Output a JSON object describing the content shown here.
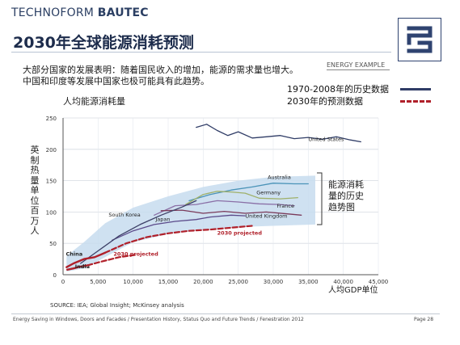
{
  "brand": {
    "part1": "TECHNOFORM ",
    "part2": "BAUTEC"
  },
  "title": "2030年全球能源消耗预测",
  "description": {
    "line1": "大部分国家的发展表明：随着国民收入的增加，能源的需求量也增大。",
    "line2": "中国和印度等发展中国家也极可能具有此趋势。"
  },
  "tag": "ENERGY EXAMPLE",
  "legend": [
    {
      "label": "1970-2008年的历史数据",
      "kind": "history",
      "color": "#2f3c66"
    },
    {
      "label": "2030年的预测数据",
      "kind": "projection",
      "color": "#b0202a"
    }
  ],
  "chart_subtitle": "人均能源消耗量",
  "side_label": "能源消耗量的历史趋势图",
  "source": "SOURCE: IEA; Global Insight; McKinsey analysis",
  "footer": "Energy Saving in Windows, Doors and Facades  / Presentation History, Status Quo and Future Trends / Fenestration 2012",
  "page_label": "Page 28",
  "chart_data": {
    "type": "line",
    "ylabel": "英制热量单位百万人",
    "xlabel": "人均GDP单位",
    "xlim": [
      0,
      45000
    ],
    "ylim": [
      0,
      250
    ],
    "x_ticks": [
      0,
      5000,
      10000,
      15000,
      20000,
      25000,
      30000,
      35000,
      40000,
      45000
    ],
    "x_tick_labels": [
      "0",
      "5,000",
      "10,000",
      "15,000",
      "20,000",
      "25,000",
      "30,000",
      "35,000",
      "40,000",
      "45,000"
    ],
    "y_ticks": [
      0,
      50,
      100,
      150,
      200,
      250
    ],
    "grid": true,
    "colors": {
      "band": "#c7dcef",
      "history": "#2f3c66",
      "projection": "#b0202a"
    },
    "band": {
      "upper": [
        [
          500,
          30
        ],
        [
          3000,
          52
        ],
        [
          6000,
          82
        ],
        [
          10000,
          107
        ],
        [
          15000,
          125
        ],
        [
          20000,
          140
        ],
        [
          25000,
          150
        ],
        [
          30000,
          156
        ],
        [
          36000,
          158
        ]
      ],
      "lower": [
        [
          500,
          5
        ],
        [
          3000,
          10
        ],
        [
          6000,
          28
        ],
        [
          10000,
          52
        ],
        [
          15000,
          65
        ],
        [
          20000,
          72
        ],
        [
          25000,
          76
        ],
        [
          30000,
          78
        ],
        [
          36000,
          80
        ]
      ]
    },
    "series": [
      {
        "name": "United States",
        "label": "United States",
        "label_at": [
          35000,
          213
        ],
        "color": "#2f3c66",
        "dashed": false,
        "points": [
          [
            19000,
            235
          ],
          [
            20500,
            240
          ],
          [
            22000,
            230
          ],
          [
            23500,
            222
          ],
          [
            25000,
            228
          ],
          [
            27000,
            218
          ],
          [
            29000,
            220
          ],
          [
            31000,
            222
          ],
          [
            33000,
            217
          ],
          [
            35000,
            219
          ],
          [
            37000,
            216
          ],
          [
            39000,
            220
          ],
          [
            41000,
            215
          ],
          [
            42500,
            212
          ]
        ]
      },
      {
        "name": "Australia",
        "label": "Australia",
        "label_at": [
          29200,
          153
        ],
        "color": "#4a93b8",
        "dashed": false,
        "points": [
          [
            18000,
            118
          ],
          [
            21000,
            128
          ],
          [
            24000,
            135
          ],
          [
            27000,
            140
          ],
          [
            30000,
            146
          ],
          [
            33000,
            145
          ],
          [
            35000,
            145
          ]
        ]
      },
      {
        "name": "Germany",
        "label": "Germany",
        "label_at": [
          27600,
          128
        ],
        "color": "#9fb06a",
        "dashed": false,
        "points": [
          [
            17500,
            112
          ],
          [
            20000,
            128
          ],
          [
            22000,
            133
          ],
          [
            24000,
            132
          ],
          [
            26000,
            130
          ],
          [
            28000,
            122
          ],
          [
            31000,
            121
          ],
          [
            33500,
            123
          ]
        ]
      },
      {
        "name": "France",
        "label": "France",
        "label_at": [
          30500,
          107
        ],
        "color": "#8a6fa6",
        "dashed": false,
        "points": [
          [
            13000,
            95
          ],
          [
            16000,
            110
          ],
          [
            19000,
            112
          ],
          [
            22000,
            118
          ],
          [
            25000,
            116
          ],
          [
            28000,
            113
          ],
          [
            31000,
            112
          ],
          [
            33000,
            110
          ]
        ]
      },
      {
        "name": "United Kingdom",
        "label": "United Kingdom",
        "label_at": [
          26000,
          91
        ],
        "color": "#7a3a5a",
        "dashed": false,
        "points": [
          [
            14000,
            102
          ],
          [
            17000,
            103
          ],
          [
            20000,
            98
          ],
          [
            23000,
            101
          ],
          [
            26000,
            98
          ],
          [
            29000,
            100
          ],
          [
            32000,
            97
          ],
          [
            34000,
            95
          ]
        ]
      },
      {
        "name": "Japan",
        "label": "Japan",
        "label_at": [
          13200,
          86
        ],
        "color": "#5b4a8a",
        "dashed": false,
        "points": [
          [
            7000,
            55
          ],
          [
            10000,
            70
          ],
          [
            13000,
            80
          ],
          [
            16000,
            85
          ],
          [
            19000,
            88
          ],
          [
            21000,
            92
          ],
          [
            24000,
            95
          ],
          [
            26000,
            94
          ]
        ]
      },
      {
        "name": "South Korea",
        "label": "South Korea",
        "label_at": [
          6500,
          93
        ],
        "color": "#3c3f66",
        "dashed": false,
        "points": [
          [
            2500,
            18
          ],
          [
            5000,
            38
          ],
          [
            8000,
            62
          ],
          [
            11000,
            80
          ],
          [
            14000,
            95
          ],
          [
            17000,
            108
          ],
          [
            19000,
            118
          ]
        ]
      },
      {
        "name": "China",
        "label": "China",
        "label_at": [
          400,
          30
        ],
        "color": "#b0202a",
        "dashed": false,
        "points": [
          [
            500,
            12
          ],
          [
            1500,
            18
          ],
          [
            3000,
            25
          ],
          [
            4500,
            28
          ],
          [
            6000,
            35
          ]
        ]
      },
      {
        "name": "India",
        "label": "India",
        "label_at": [
          1700,
          10
        ],
        "color": "#b0202a",
        "dashed": false,
        "points": [
          [
            600,
            8
          ],
          [
            1500,
            10
          ],
          [
            2500,
            13
          ],
          [
            3500,
            15
          ]
        ]
      },
      {
        "name": "China 2030 projected",
        "label": "2030 projected",
        "label_at": [
          22000,
          64
        ],
        "color": "#b0202a",
        "dashed": true,
        "points": [
          [
            6000,
            35
          ],
          [
            9000,
            50
          ],
          [
            12000,
            60
          ],
          [
            15000,
            66
          ],
          [
            18000,
            70
          ],
          [
            21000,
            72
          ],
          [
            24000,
            75
          ],
          [
            27000,
            78
          ]
        ]
      },
      {
        "name": "India 2030 projected",
        "label": "2030 projected",
        "label_at": [
          7200,
          30
        ],
        "color": "#b0202a",
        "dashed": true,
        "points": [
          [
            3500,
            15
          ],
          [
            5500,
            21
          ],
          [
            8000,
            28
          ],
          [
            10500,
            32
          ]
        ]
      }
    ]
  }
}
